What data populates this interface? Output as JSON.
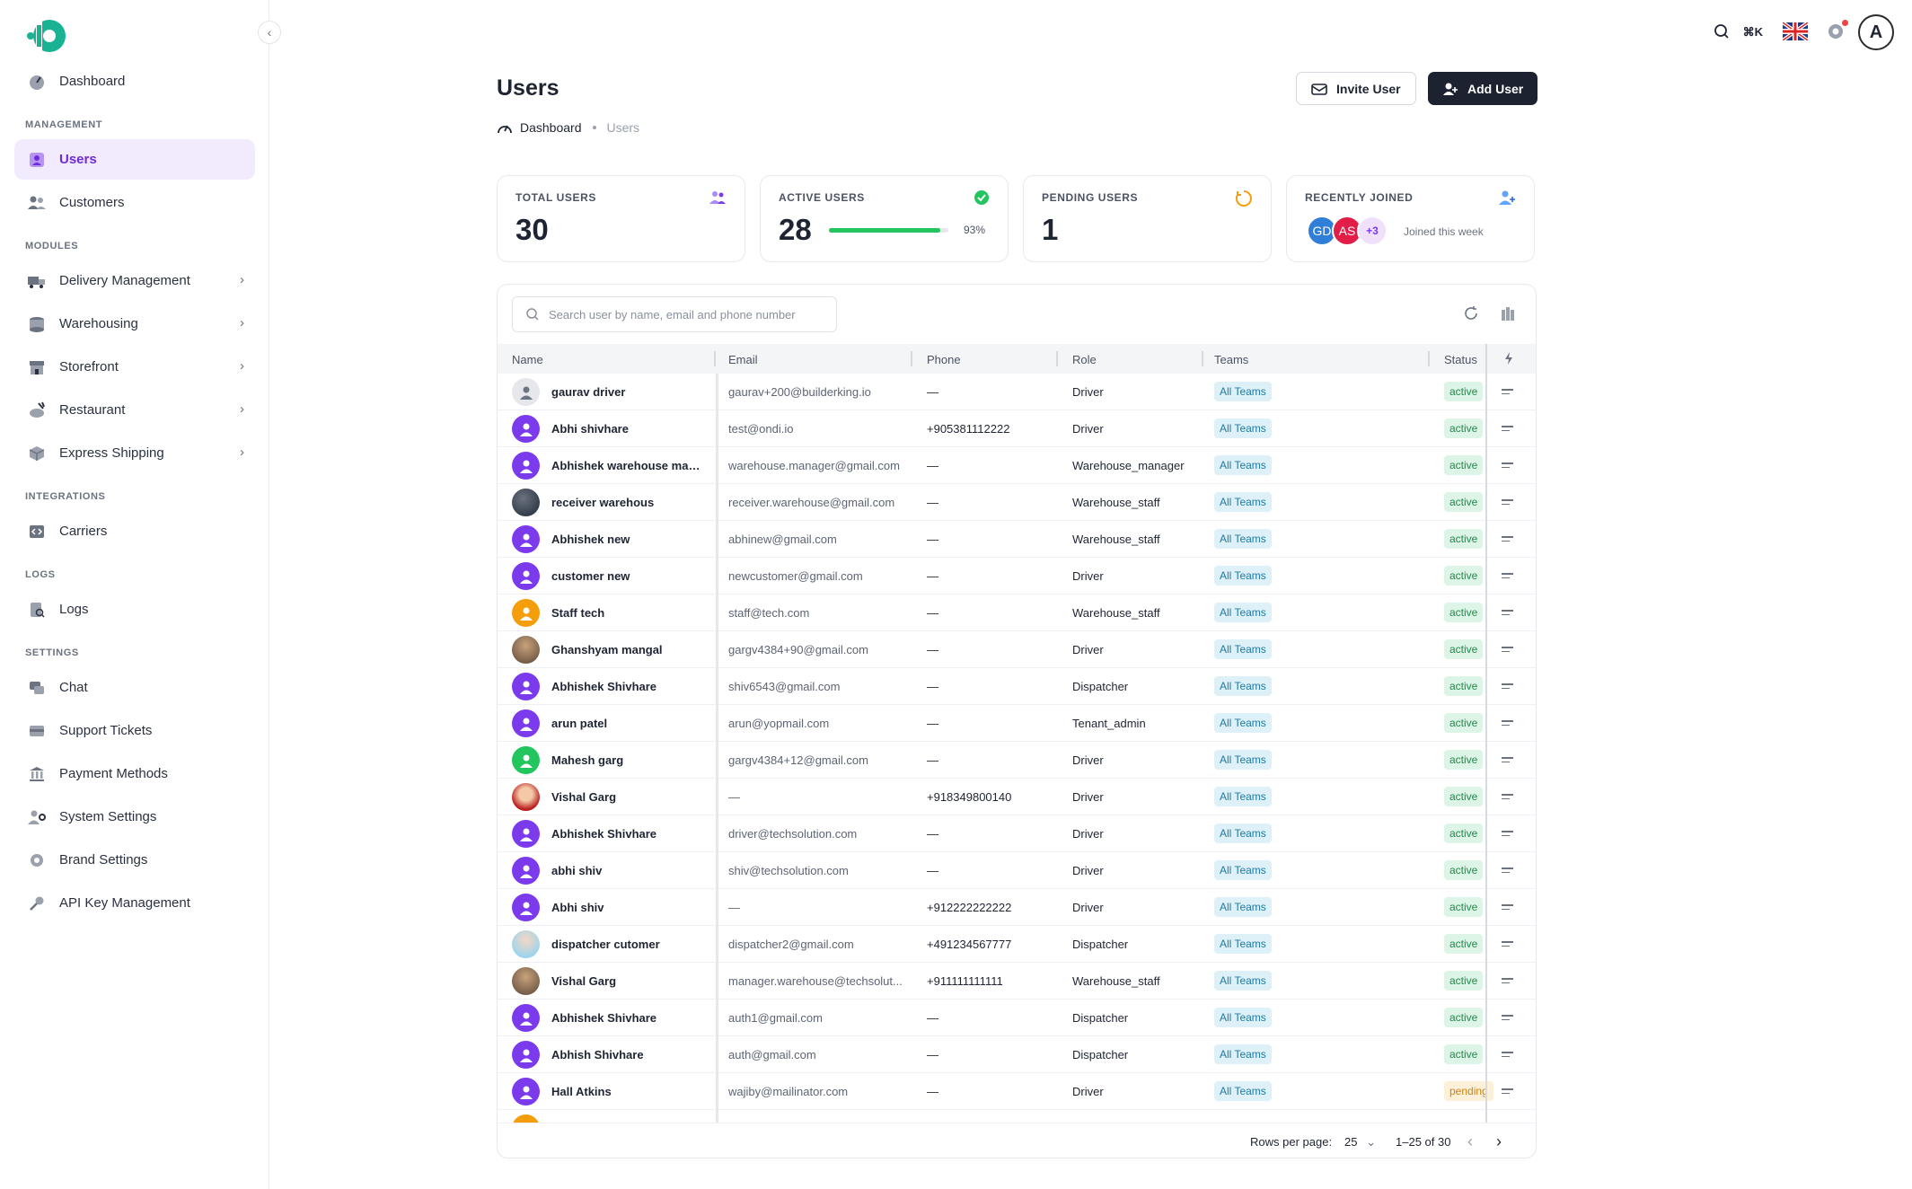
{
  "sidebar": {
    "collapse_icon": "chevron-left-icon",
    "sections": {
      "management": "MANAGEMENT",
      "modules": "MODULES",
      "integrations": "INTEGRATIONS",
      "logs": "LOGS",
      "settings": "SETTINGS"
    },
    "items": {
      "dashboard": "Dashboard",
      "users": "Users",
      "customers": "Customers",
      "delivery": "Delivery Management",
      "warehousing": "Warehousing",
      "storefront": "Storefront",
      "restaurant": "Restaurant",
      "express": "Express Shipping",
      "carriers": "Carriers",
      "logs": "Logs",
      "chat": "Chat",
      "support": "Support Tickets",
      "payment": "Payment Methods",
      "system": "System Settings",
      "brand": "Brand Settings",
      "apikey": "API Key Management"
    }
  },
  "topbar": {
    "shortcut": "⌘K",
    "avatar_letter": "A"
  },
  "header": {
    "title": "Users",
    "breadcrumb_home": "Dashboard",
    "breadcrumb_current": "Users",
    "invite_label": "Invite User",
    "add_label": "Add User"
  },
  "stats": {
    "total_label": "TOTAL USERS",
    "total_value": "30",
    "active_label": "ACTIVE USERS",
    "active_value": "28",
    "active_pct": "93%",
    "active_fraction": 0.93,
    "pending_label": "PENDING USERS",
    "pending_value": "1",
    "recent_label": "RECENTLY JOINED",
    "recent_avatars": [
      "GD",
      "AS",
      "+3"
    ],
    "recent_caption": "Joined this week"
  },
  "table": {
    "search_placeholder": "Search user by name, email and phone number",
    "columns": {
      "name": "Name",
      "email": "Email",
      "phone": "Phone",
      "role": "Role",
      "teams": "Teams",
      "status": "Status"
    },
    "rows": [
      {
        "name": "gaurav driver",
        "email": "gaurav+200@builderking.io",
        "phone": "—",
        "role": "Driver",
        "team": "All Teams",
        "status": "active",
        "avatar": "gray"
      },
      {
        "name": "Abhi shivhare",
        "email": "test@ondi.io",
        "phone": "+905381112222",
        "role": "Driver",
        "team": "All Teams",
        "status": "active",
        "avatar": "purple"
      },
      {
        "name": "Abhishek warehouse man...",
        "email": "warehouse.manager@gmail.com",
        "phone": "—",
        "role": "Warehouse_manager",
        "team": "All Teams",
        "status": "active",
        "avatar": "purple"
      },
      {
        "name": "receiver warehous",
        "email": "receiver.warehouse@gmail.com",
        "phone": "—",
        "role": "Warehouse_staff",
        "team": "All Teams",
        "status": "active",
        "avatar": "photo-dark"
      },
      {
        "name": "Abhishek new",
        "email": "abhinew@gmail.com",
        "phone": "—",
        "role": "Warehouse_staff",
        "team": "All Teams",
        "status": "active",
        "avatar": "purple"
      },
      {
        "name": "customer new",
        "email": "newcustomer@gmail.com",
        "phone": "—",
        "role": "Driver",
        "team": "All Teams",
        "status": "active",
        "avatar": "purple"
      },
      {
        "name": "Staff tech",
        "email": "staff@tech.com",
        "phone": "—",
        "role": "Warehouse_staff",
        "team": "All Teams",
        "status": "active",
        "avatar": "orange"
      },
      {
        "name": "Ghanshyam mangal",
        "email": "gargv4384+90@gmail.com",
        "phone": "—",
        "role": "Driver",
        "team": "All Teams",
        "status": "active",
        "avatar": "photo-brown"
      },
      {
        "name": "Abhishek Shivhare",
        "email": "shiv6543@gmail.com",
        "phone": "—",
        "role": "Dispatcher",
        "team": "All Teams",
        "status": "active",
        "avatar": "purple"
      },
      {
        "name": "arun patel",
        "email": "arun@yopmail.com",
        "phone": "—",
        "role": "Tenant_admin",
        "team": "All Teams",
        "status": "active",
        "avatar": "purple"
      },
      {
        "name": "Mahesh garg",
        "email": "gargv4384+12@gmail.com",
        "phone": "—",
        "role": "Driver",
        "team": "All Teams",
        "status": "active",
        "avatar": "green"
      },
      {
        "name": "Vishal Garg",
        "email": "—",
        "phone": "+918349800140",
        "role": "Driver",
        "team": "All Teams",
        "status": "active",
        "avatar": "photo-red"
      },
      {
        "name": "Abhishek Shivhare",
        "email": "driver@techsolution.com",
        "phone": "—",
        "role": "Driver",
        "team": "All Teams",
        "status": "active",
        "avatar": "purple"
      },
      {
        "name": "abhi shiv",
        "email": "shiv@techsolution.com",
        "phone": "—",
        "role": "Driver",
        "team": "All Teams",
        "status": "active",
        "avatar": "purple"
      },
      {
        "name": "Abhi shiv",
        "email": "—",
        "phone": "+912222222222",
        "role": "Driver",
        "team": "All Teams",
        "status": "active",
        "avatar": "purple"
      },
      {
        "name": "dispatcher cutomer",
        "email": "dispatcher2@gmail.com",
        "phone": "+491234567777",
        "role": "Dispatcher",
        "team": "All Teams",
        "status": "active",
        "avatar": "photo-light"
      },
      {
        "name": "Vishal Garg",
        "email": "manager.warehouse@techsolut...",
        "phone": "+911111111111",
        "role": "Warehouse_staff",
        "team": "All Teams",
        "status": "active",
        "avatar": "photo-brown"
      },
      {
        "name": "Abhishek Shivhare",
        "email": "auth1@gmail.com",
        "phone": "—",
        "role": "Dispatcher",
        "team": "All Teams",
        "status": "active",
        "avatar": "purple"
      },
      {
        "name": "Abhish Shivhare",
        "email": "auth@gmail.com",
        "phone": "—",
        "role": "Dispatcher",
        "team": "All Teams",
        "status": "active",
        "avatar": "purple"
      },
      {
        "name": "Hall Atkins",
        "email": "wajiby@mailinator.com",
        "phone": "—",
        "role": "Driver",
        "team": "All Teams",
        "status": "pending",
        "avatar": "purple"
      },
      {
        "name": "",
        "email": "",
        "phone": "",
        "role": "",
        "team": "",
        "status": "",
        "avatar": "orange"
      }
    ],
    "footer": {
      "rows_per_page_label": "Rows per page:",
      "rows_per_page": "25",
      "range": "1–25 of 30"
    }
  },
  "colors": {
    "accent": "#6f2bd9",
    "active_bg": "#f2ebfd",
    "brand_teal": "#19b394",
    "dark_button": "#1c2230"
  }
}
